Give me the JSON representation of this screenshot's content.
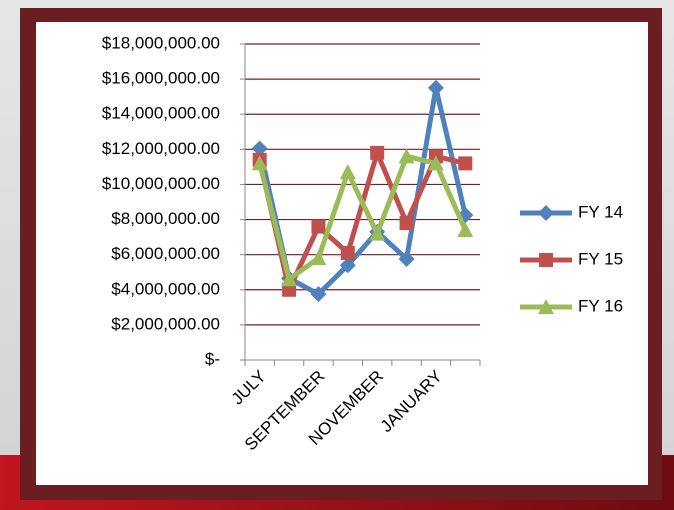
{
  "chart_data": {
    "type": "line",
    "categories": [
      "JULY",
      null,
      "SEPTEMBER",
      null,
      "NOVEMBER",
      null,
      "JANUARY",
      null
    ],
    "series": [
      {
        "name": "FY 14",
        "color": "#4f81bd",
        "marker": "diamond",
        "values": [
          12050000,
          4650000,
          3750000,
          5400000,
          7300000,
          5750000,
          15500000,
          8250000
        ]
      },
      {
        "name": "FY 15",
        "color": "#c0504d",
        "marker": "square",
        "values": [
          11400000,
          4000000,
          7600000,
          6100000,
          11800000,
          7800000,
          11600000,
          11200000
        ]
      },
      {
        "name": "FY 16",
        "color": "#9bbb59",
        "marker": "triangle",
        "values": [
          11200000,
          4600000,
          5800000,
          10700000,
          7200000,
          11600000,
          11200000,
          7400000
        ]
      }
    ],
    "ylim": [
      0,
      18000000
    ],
    "yticks": [
      {
        "value": 0,
        "label": "$-"
      },
      {
        "value": 2000000,
        "label": "$2,000,000.00"
      },
      {
        "value": 4000000,
        "label": "$4,000,000.00"
      },
      {
        "value": 6000000,
        "label": "$6,000,000.00"
      },
      {
        "value": 8000000,
        "label": "$8,000,000.00"
      },
      {
        "value": 10000000,
        "label": "$10,000,000.00"
      },
      {
        "value": 12000000,
        "label": "$12,000,000.00"
      },
      {
        "value": 14000000,
        "label": "$14,000,000.00"
      },
      {
        "value": 16000000,
        "label": "$16,000,000.00"
      },
      {
        "value": 18000000,
        "label": "$18,000,000.00"
      }
    ],
    "grid": true,
    "grid_color": "#7a1a2a",
    "legend": "right"
  }
}
